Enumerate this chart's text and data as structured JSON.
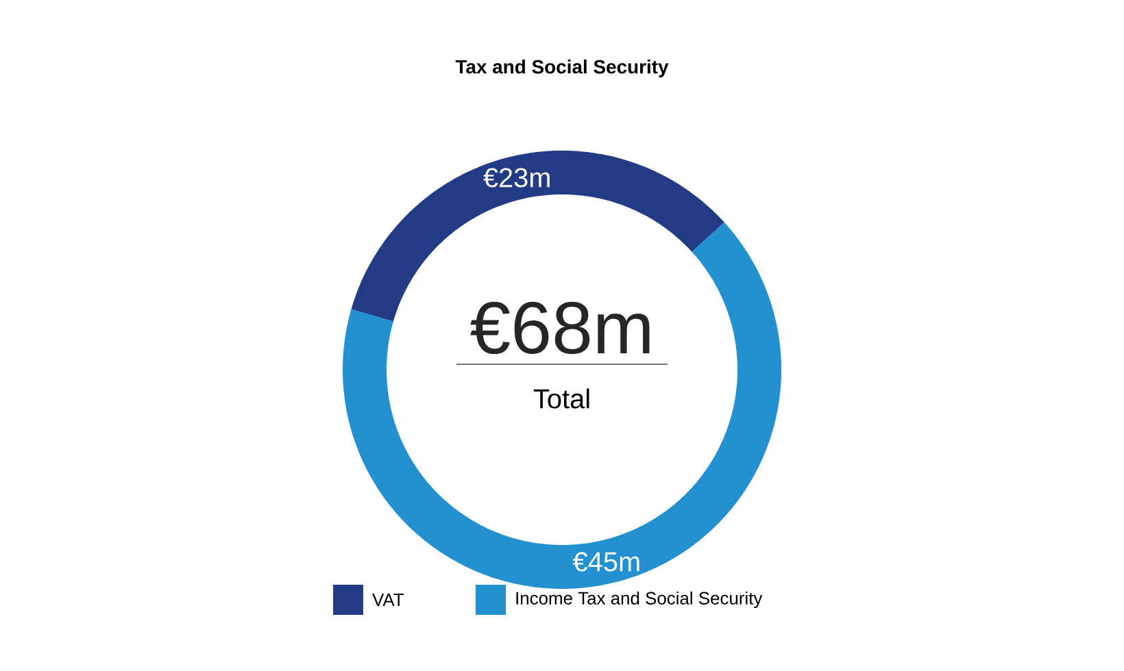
{
  "chart_data": {
    "type": "donut",
    "title": "Tax and Social Security",
    "categories": [
      "VAT",
      "Income Tax and Social Security"
    ],
    "values": [
      23,
      45
    ],
    "value_labels": [
      "€23m",
      "€45m"
    ],
    "colors": [
      "#233a85",
      "#2390d0"
    ],
    "annotations": [
      "€68m",
      "Total"
    ],
    "legend": "bottom"
  }
}
